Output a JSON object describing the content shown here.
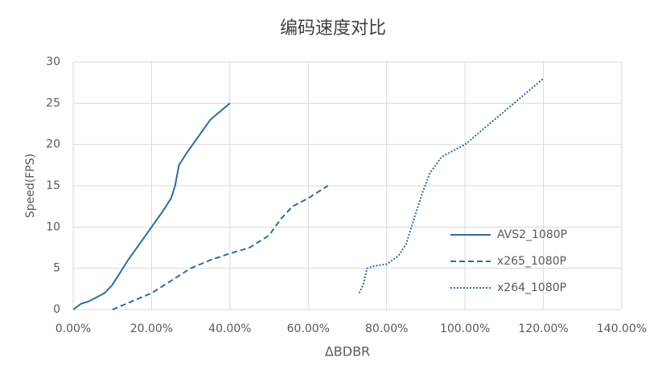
{
  "chart_data": {
    "type": "line",
    "title": "编码速度对比",
    "x_label": "ΔBDBR",
    "y_label": "Speed(FPS)",
    "xlim": [
      0,
      140
    ],
    "ylim": [
      0,
      30
    ],
    "xticks": [
      {
        "value": 0,
        "label": "0.00%"
      },
      {
        "value": 20,
        "label": "20.00%"
      },
      {
        "value": 40,
        "label": "40.00%"
      },
      {
        "value": 60,
        "label": "60.00%"
      },
      {
        "value": 80,
        "label": "80.00%"
      },
      {
        "value": 100,
        "label": "100.00%"
      },
      {
        "value": 120,
        "label": "120.00%"
      },
      {
        "value": 140,
        "label": "140.00%"
      }
    ],
    "yticks": [
      0,
      5,
      10,
      15,
      20,
      25,
      30
    ],
    "grid": true,
    "legend": "lower right",
    "series": [
      {
        "name": "AVS2_1080P",
        "color": "#2e6d9c",
        "dash": "solid",
        "x": [
          0,
          2,
          4,
          6,
          8,
          10,
          12,
          14,
          17,
          20,
          23,
          25,
          26,
          27,
          29,
          32,
          35,
          40
        ],
        "values": [
          0,
          0.7,
          1.0,
          1.5,
          2.0,
          3,
          4.5,
          6,
          8,
          10,
          12,
          13.5,
          15,
          17.5,
          19,
          21,
          23,
          25
        ]
      },
      {
        "name": "x265_1080P",
        "color": "#2e6d9c",
        "dash": "dashed",
        "x": [
          10,
          15,
          20,
          25,
          30,
          35,
          40,
          45,
          50,
          53,
          56,
          60,
          65
        ],
        "values": [
          0,
          1,
          2,
          3.5,
          5,
          6,
          6.8,
          7.5,
          9,
          11,
          12.5,
          13.5,
          15
        ]
      },
      {
        "name": "x264_1080P",
        "color": "#2e6d9c",
        "dash": "dotted",
        "x": [
          73,
          74,
          75,
          77,
          80,
          83,
          85,
          87,
          89,
          91,
          94,
          100,
          110,
          120
        ],
        "values": [
          2,
          3,
          5,
          5.3,
          5.5,
          6.5,
          8,
          11,
          14,
          16.5,
          18.5,
          20,
          24,
          28
        ]
      }
    ]
  }
}
